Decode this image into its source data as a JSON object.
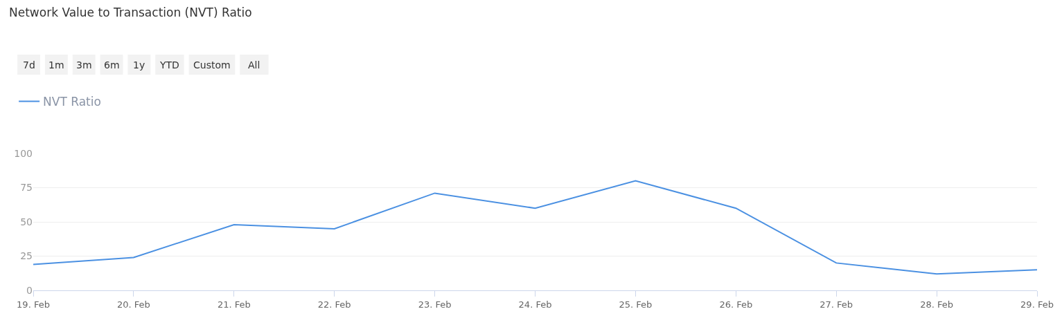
{
  "chart_data": {
    "type": "line",
    "title": "Network Value to Transaction (NVT) Ratio",
    "annotations": [
      "7d",
      "1m",
      "3m",
      "6m",
      "1y",
      "YTD",
      "Custom",
      "All"
    ],
    "categories": [
      "19. Feb",
      "20. Feb",
      "21. Feb",
      "22. Feb",
      "23. Feb",
      "24. Feb",
      "25. Feb",
      "26. Feb",
      "27. Feb",
      "28. Feb",
      "29. Feb"
    ],
    "series": [
      {
        "name": "NVT Ratio",
        "color": "#4a90e2",
        "values": [
          19,
          24,
          48,
          45,
          71,
          60,
          80,
          60,
          20,
          12,
          15
        ]
      }
    ],
    "ylim": [
      0,
      100
    ],
    "yticks": [
      0,
      25,
      50,
      75,
      100
    ],
    "grid": "y",
    "legend": "top left",
    "marker": "none",
    "line_style": "solid"
  }
}
